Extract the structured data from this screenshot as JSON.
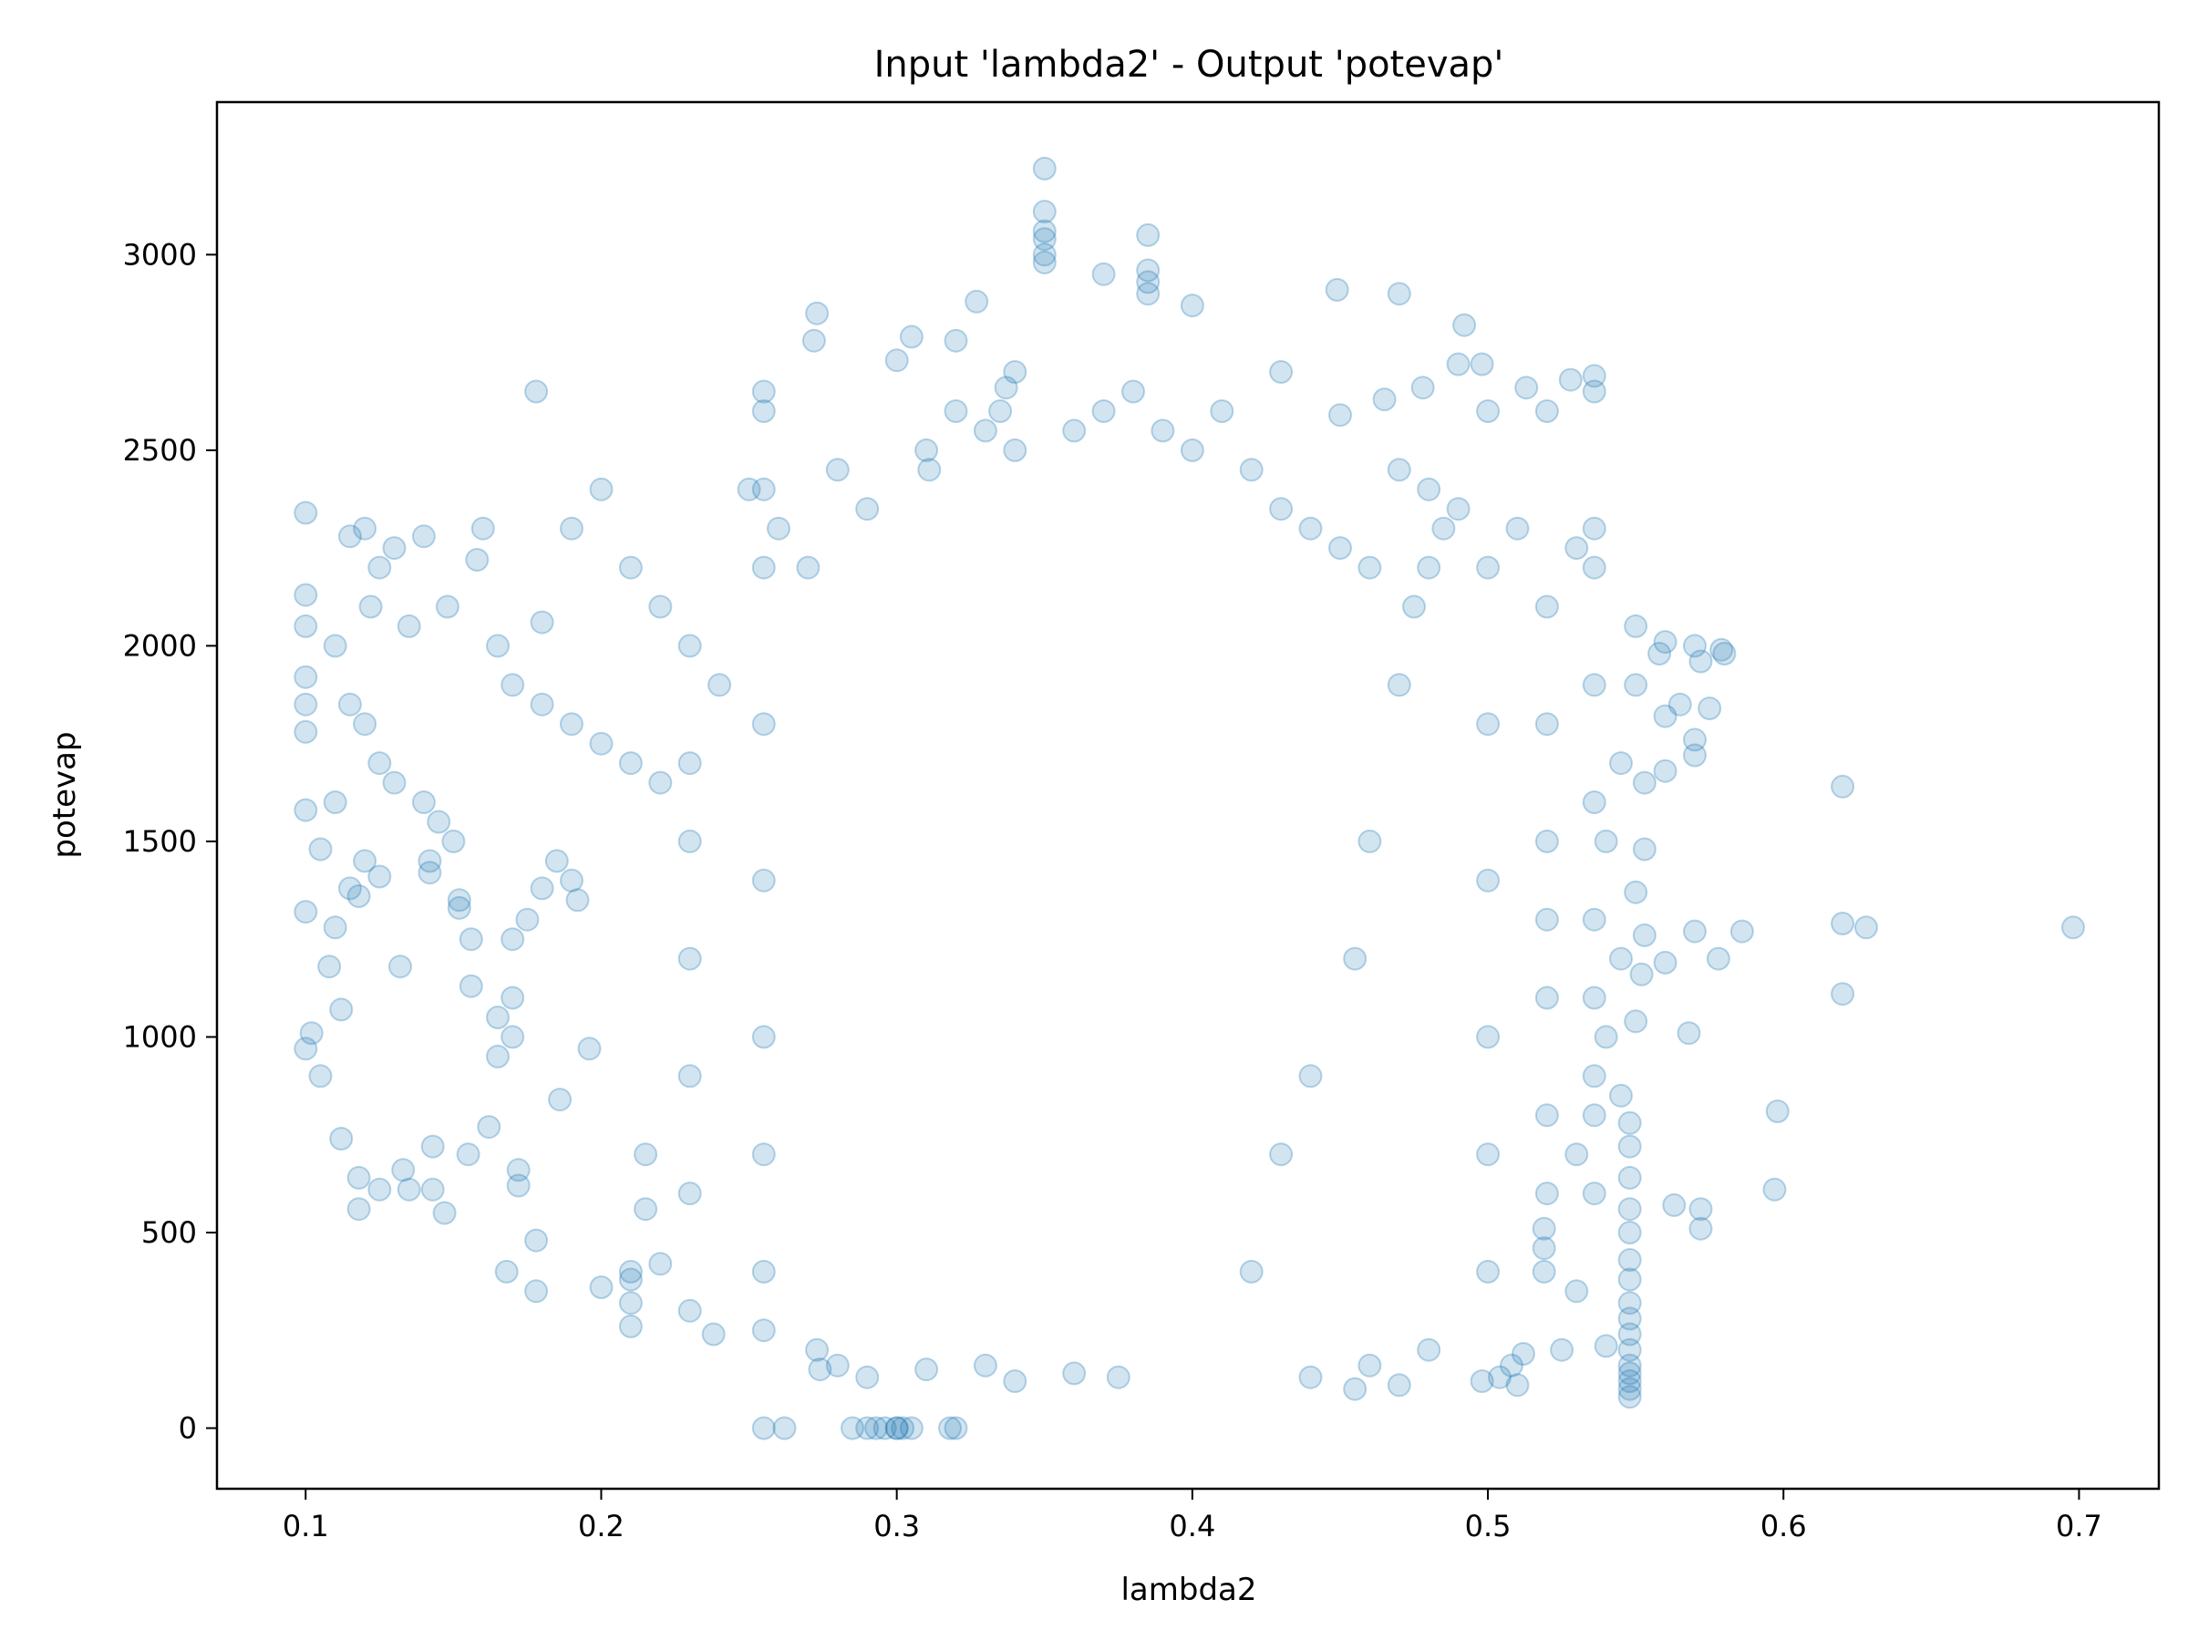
{
  "chart_data": {
    "type": "scatter",
    "title": "Input 'lambda2' - Output 'potevap'",
    "xlabel": "lambda2",
    "ylabel": "potevap",
    "xlim": [
      0.07,
      0.727
    ],
    "ylim": [
      -155,
      3390
    ],
    "xticks": [
      "0.1",
      "0.2",
      "0.3",
      "0.4",
      "0.5",
      "0.6",
      "0.7"
    ],
    "yticks": [
      "0",
      "500",
      "1000",
      "1500",
      "2000",
      "2500",
      "3000"
    ],
    "grid": false,
    "legend": "none",
    "marker_color": "#1f77b4",
    "marker_alpha": 0.2,
    "series": [
      {
        "points": [
          [
            0.1,
            2340
          ],
          [
            0.1,
            2130
          ],
          [
            0.1,
            2050
          ],
          [
            0.1,
            1920
          ],
          [
            0.1,
            1850
          ],
          [
            0.1,
            1780
          ],
          [
            0.1,
            1580
          ],
          [
            0.1,
            1320
          ],
          [
            0.1,
            970
          ],
          [
            0.102,
            1010
          ],
          [
            0.105,
            900
          ],
          [
            0.108,
            1180
          ],
          [
            0.11,
            1280
          ],
          [
            0.112,
            1070
          ],
          [
            0.112,
            740
          ],
          [
            0.118,
            640
          ],
          [
            0.118,
            560
          ],
          [
            0.125,
            610
          ],
          [
            0.133,
            660
          ],
          [
            0.135,
            610
          ],
          [
            0.143,
            720
          ],
          [
            0.143,
            610
          ],
          [
            0.147,
            550
          ],
          [
            0.155,
            700
          ],
          [
            0.162,
            770
          ],
          [
            0.178,
            2650
          ],
          [
            0.18,
            2060
          ],
          [
            0.132,
            1180
          ],
          [
            0.118,
            1360
          ],
          [
            0.125,
            1410
          ],
          [
            0.156,
            1130
          ],
          [
            0.156,
            1250
          ],
          [
            0.186,
            840
          ],
          [
            0.196,
            970
          ],
          [
            0.178,
            480
          ],
          [
            0.178,
            350
          ],
          [
            0.2,
            360
          ],
          [
            0.21,
            380
          ],
          [
            0.22,
            420
          ],
          [
            0.238,
            240
          ],
          [
            0.285,
            0
          ],
          [
            0.29,
            0
          ],
          [
            0.293,
            0
          ],
          [
            0.296,
            0
          ],
          [
            0.3,
            0
          ],
          [
            0.3,
            0
          ],
          [
            0.302,
            0
          ],
          [
            0.305,
            0
          ],
          [
            0.255,
            0
          ],
          [
            0.262,
            0
          ],
          [
            0.318,
            0
          ],
          [
            0.32,
            0
          ],
          [
            0.35,
            3220
          ],
          [
            0.35,
            3110
          ],
          [
            0.35,
            3060
          ],
          [
            0.35,
            3040
          ],
          [
            0.35,
            3000
          ],
          [
            0.35,
            2980
          ],
          [
            0.385,
            3050
          ],
          [
            0.385,
            2960
          ],
          [
            0.385,
            2930
          ],
          [
            0.385,
            2900
          ],
          [
            0.37,
            2950
          ],
          [
            0.4,
            2870
          ],
          [
            0.449,
            2910
          ],
          [
            0.47,
            2900
          ],
          [
            0.492,
            2820
          ],
          [
            0.327,
            2880
          ],
          [
            0.273,
            2850
          ],
          [
            0.272,
            2780
          ],
          [
            0.305,
            2790
          ],
          [
            0.32,
            2780
          ],
          [
            0.3,
            2730
          ],
          [
            0.34,
            2700
          ],
          [
            0.337,
            2660
          ],
          [
            0.335,
            2600
          ],
          [
            0.311,
            2450
          ],
          [
            0.43,
            2700
          ],
          [
            0.45,
            2590
          ],
          [
            0.465,
            2630
          ],
          [
            0.478,
            2660
          ],
          [
            0.49,
            2720
          ],
          [
            0.498,
            2720
          ],
          [
            0.513,
            2660
          ],
          [
            0.528,
            2680
          ],
          [
            0.52,
            2600
          ],
          [
            0.536,
            2690
          ],
          [
            0.536,
            2650
          ],
          [
            0.55,
            2050
          ],
          [
            0.558,
            1980
          ],
          [
            0.56,
            2010
          ],
          [
            0.56,
            1820
          ],
          [
            0.565,
            1850
          ],
          [
            0.572,
            1960
          ],
          [
            0.57,
            2000
          ],
          [
            0.57,
            1760
          ],
          [
            0.57,
            1720
          ],
          [
            0.579,
            1990
          ],
          [
            0.58,
            1980
          ],
          [
            0.575,
            1840
          ],
          [
            0.56,
            1680
          ],
          [
            0.553,
            1650
          ],
          [
            0.553,
            1480
          ],
          [
            0.55,
            1370
          ],
          [
            0.553,
            1260
          ],
          [
            0.552,
            1160
          ],
          [
            0.56,
            1190
          ],
          [
            0.55,
            1040
          ],
          [
            0.57,
            1270
          ],
          [
            0.586,
            1270
          ],
          [
            0.578,
            1200
          ],
          [
            0.568,
            1010
          ],
          [
            0.598,
            810
          ],
          [
            0.597,
            610
          ],
          [
            0.563,
            570
          ],
          [
            0.572,
            560
          ],
          [
            0.572,
            510
          ],
          [
            0.62,
            1640
          ],
          [
            0.62,
            1290
          ],
          [
            0.628,
            1280
          ],
          [
            0.62,
            1110
          ],
          [
            0.698,
            1280
          ],
          [
            0.548,
            140
          ],
          [
            0.548,
            120
          ],
          [
            0.548,
            100
          ],
          [
            0.548,
            80
          ],
          [
            0.548,
            160
          ],
          [
            0.548,
            200
          ],
          [
            0.548,
            240
          ],
          [
            0.548,
            280
          ],
          [
            0.548,
            320
          ],
          [
            0.548,
            380
          ],
          [
            0.548,
            430
          ],
          [
            0.548,
            500
          ],
          [
            0.548,
            560
          ],
          [
            0.548,
            640
          ],
          [
            0.548,
            720
          ],
          [
            0.548,
            780
          ],
          [
            0.53,
            350
          ],
          [
            0.54,
            210
          ],
          [
            0.525,
            200
          ],
          [
            0.512,
            190
          ],
          [
            0.508,
            160
          ],
          [
            0.504,
            130
          ],
          [
            0.498,
            120
          ],
          [
            0.51,
            110
          ],
          [
            0.519,
            400
          ],
          [
            0.519,
            460
          ],
          [
            0.519,
            510
          ],
          [
            0.536,
            1900
          ],
          [
            0.536,
            1600
          ],
          [
            0.536,
            1300
          ],
          [
            0.536,
            1100
          ],
          [
            0.536,
            900
          ],
          [
            0.536,
            800
          ],
          [
            0.536,
            600
          ],
          [
            0.536,
            2300
          ],
          [
            0.536,
            2200
          ],
          [
            0.52,
            2100
          ],
          [
            0.52,
            1800
          ],
          [
            0.52,
            1500
          ],
          [
            0.52,
            1300
          ],
          [
            0.52,
            1100
          ],
          [
            0.52,
            800
          ],
          [
            0.52,
            600
          ],
          [
            0.5,
            2600
          ],
          [
            0.5,
            2200
          ],
          [
            0.5,
            1800
          ],
          [
            0.5,
            1400
          ],
          [
            0.5,
            1000
          ],
          [
            0.5,
            700
          ],
          [
            0.5,
            400
          ],
          [
            0.48,
            2400
          ],
          [
            0.48,
            2200
          ],
          [
            0.485,
            2300
          ],
          [
            0.475,
            2100
          ],
          [
            0.47,
            1900
          ],
          [
            0.46,
            1500
          ],
          [
            0.455,
            1200
          ],
          [
            0.44,
            900
          ],
          [
            0.43,
            700
          ],
          [
            0.42,
            400
          ],
          [
            0.455,
            100
          ],
          [
            0.44,
            130
          ],
          [
            0.46,
            160
          ],
          [
            0.47,
            110
          ],
          [
            0.48,
            200
          ],
          [
            0.375,
            130
          ],
          [
            0.36,
            140
          ],
          [
            0.34,
            120
          ],
          [
            0.33,
            160
          ],
          [
            0.31,
            150
          ],
          [
            0.29,
            130
          ],
          [
            0.28,
            160
          ],
          [
            0.274,
            150
          ],
          [
            0.273,
            200
          ],
          [
            0.255,
            250
          ],
          [
            0.255,
            400
          ],
          [
            0.255,
            700
          ],
          [
            0.255,
            1000
          ],
          [
            0.255,
            1400
          ],
          [
            0.255,
            1800
          ],
          [
            0.255,
            2200
          ],
          [
            0.255,
            2400
          ],
          [
            0.255,
            2600
          ],
          [
            0.255,
            2650
          ],
          [
            0.23,
            300
          ],
          [
            0.23,
            600
          ],
          [
            0.23,
            900
          ],
          [
            0.23,
            1200
          ],
          [
            0.23,
            1500
          ],
          [
            0.23,
            1700
          ],
          [
            0.21,
            260
          ],
          [
            0.21,
            320
          ],
          [
            0.21,
            400
          ],
          [
            0.215,
            560
          ],
          [
            0.215,
            700
          ],
          [
            0.192,
            1350
          ],
          [
            0.19,
            1400
          ],
          [
            0.185,
            1450
          ],
          [
            0.18,
            1380
          ],
          [
            0.175,
            1300
          ],
          [
            0.17,
            1250
          ],
          [
            0.17,
            1100
          ],
          [
            0.17,
            1000
          ],
          [
            0.165,
            1050
          ],
          [
            0.165,
            950
          ],
          [
            0.172,
            620
          ],
          [
            0.172,
            660
          ],
          [
            0.168,
            400
          ],
          [
            0.142,
            1450
          ],
          [
            0.142,
            1420
          ],
          [
            0.152,
            1350
          ],
          [
            0.152,
            1330
          ],
          [
            0.12,
            2300
          ],
          [
            0.125,
            2200
          ],
          [
            0.13,
            2250
          ],
          [
            0.115,
            2280
          ],
          [
            0.122,
            2100
          ],
          [
            0.135,
            2050
          ],
          [
            0.11,
            2000
          ],
          [
            0.115,
            1850
          ],
          [
            0.12,
            1800
          ],
          [
            0.125,
            1700
          ],
          [
            0.13,
            1650
          ],
          [
            0.14,
            1600
          ],
          [
            0.145,
            1550
          ],
          [
            0.15,
            1500
          ],
          [
            0.11,
            1600
          ],
          [
            0.105,
            1480
          ],
          [
            0.12,
            1450
          ],
          [
            0.115,
            1380
          ],
          [
            0.16,
            2300
          ],
          [
            0.158,
            2220
          ],
          [
            0.14,
            2280
          ],
          [
            0.148,
            2100
          ],
          [
            0.165,
            2000
          ],
          [
            0.17,
            1900
          ],
          [
            0.18,
            1850
          ],
          [
            0.19,
            1800
          ],
          [
            0.2,
            1750
          ],
          [
            0.21,
            1700
          ],
          [
            0.22,
            1650
          ],
          [
            0.2,
            2400
          ],
          [
            0.19,
            2300
          ],
          [
            0.21,
            2200
          ],
          [
            0.22,
            2100
          ],
          [
            0.23,
            2000
          ],
          [
            0.24,
            1900
          ],
          [
            0.25,
            2400
          ],
          [
            0.26,
            2300
          ],
          [
            0.27,
            2200
          ],
          [
            0.28,
            2450
          ],
          [
            0.29,
            2350
          ],
          [
            0.31,
            2500
          ],
          [
            0.32,
            2600
          ],
          [
            0.33,
            2550
          ],
          [
            0.34,
            2500
          ],
          [
            0.36,
            2550
          ],
          [
            0.37,
            2600
          ],
          [
            0.38,
            2650
          ],
          [
            0.39,
            2550
          ],
          [
            0.4,
            2500
          ],
          [
            0.41,
            2600
          ],
          [
            0.42,
            2450
          ],
          [
            0.43,
            2350
          ],
          [
            0.44,
            2300
          ],
          [
            0.45,
            2250
          ],
          [
            0.46,
            2200
          ],
          [
            0.47,
            2450
          ],
          [
            0.49,
            2350
          ],
          [
            0.51,
            2300
          ],
          [
            0.53,
            2250
          ],
          [
            0.55,
            1900
          ],
          [
            0.545,
            1700
          ],
          [
            0.54,
            1500
          ],
          [
            0.545,
            1200
          ],
          [
            0.54,
            1000
          ],
          [
            0.545,
            850
          ],
          [
            0.53,
            700
          ]
        ]
      }
    ]
  }
}
